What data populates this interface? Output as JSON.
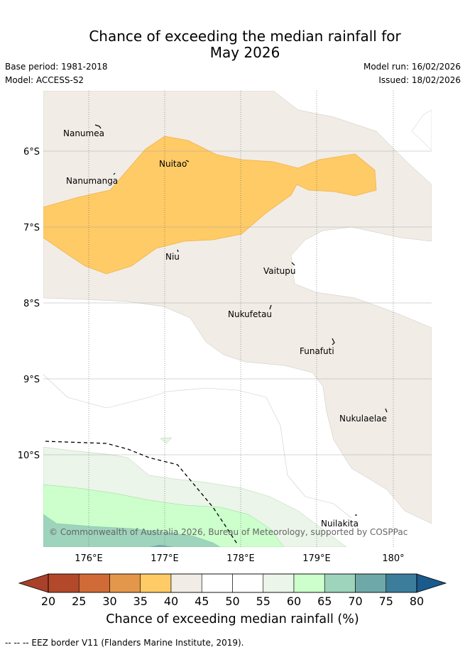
{
  "title_line1": "Chance of exceeding the median rainfall for",
  "title_line2": "May 2026",
  "base_period": "Base period: 1981-2018",
  "model": "Model: ACCESS-S2",
  "model_run": "Model run: 16/02/2026",
  "issued": "Issued: 18/02/2026",
  "copyright": "© Commonwealth of Australia 2026, Bureau of Meteorology, supported by COSPPac",
  "lat_labels": [
    "6°S",
    "7°S",
    "8°S",
    "9°S",
    "10°S"
  ],
  "lon_labels": [
    "176°E",
    "177°E",
    "178°E",
    "179°E",
    "180°"
  ],
  "islands": [
    {
      "name": "Nanumea"
    },
    {
      "name": "Nuitao"
    },
    {
      "name": "Nanumanga"
    },
    {
      "name": "Niu"
    },
    {
      "name": "Vaitupu"
    },
    {
      "name": "Nukufetau"
    },
    {
      "name": "Funafuti"
    },
    {
      "name": "Nukulaelae"
    },
    {
      "name": "Nuilakita"
    }
  ],
  "colorbar": {
    "ticks": [
      "20",
      "25",
      "30",
      "35",
      "40",
      "45",
      "50",
      "55",
      "60",
      "65",
      "70",
      "75",
      "80"
    ],
    "colors": [
      "#b3492a",
      "#d06a36",
      "#e3974b",
      "#fecb66",
      "#f1ece6",
      "#ffffff",
      "#ffffff",
      "#ebf5e9",
      "#ccffcc",
      "#9ed3bc",
      "#6fa8a8",
      "#3c7d9c"
    ],
    "under_color": "#a8402a",
    "over_color": "#1a5a8c",
    "title": "Chance of exceeding median rainfall (%)"
  },
  "footer": "-- -- -- EEZ border V11 (Flanders Marine Institute, 2019)."
}
